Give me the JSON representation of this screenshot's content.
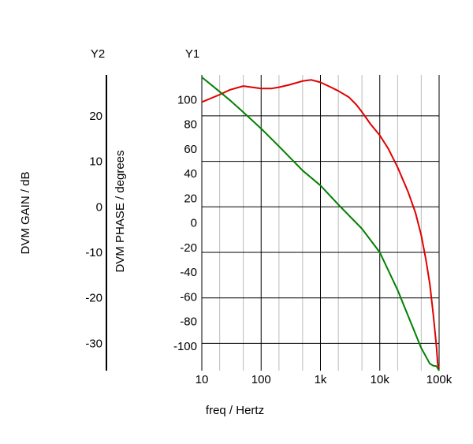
{
  "chart_data": {
    "type": "line",
    "x_scale": "log",
    "xlabel": "freq / Hertz",
    "x_ticks": [
      {
        "value": 10,
        "label": "10"
      },
      {
        "value": 100,
        "label": "100"
      },
      {
        "value": 1000,
        "label": "1k"
      },
      {
        "value": 10000,
        "label": "10k"
      },
      {
        "value": 100000,
        "label": "100k"
      }
    ],
    "xlim": [
      10,
      100000
    ],
    "grid": true,
    "axes": {
      "y1": {
        "name": "Y1",
        "ylabel": "DVM PHASE / degrees",
        "ylim": [
          -120,
          120
        ],
        "tick_values": [
          100,
          80,
          60,
          40,
          20,
          0,
          -20,
          -40,
          -60,
          -80,
          -100
        ],
        "tick_labels": [
          "100",
          "80",
          "60",
          "40",
          "20",
          "0",
          "-20",
          "-40",
          "-60",
          "-80",
          "-100"
        ]
      },
      "y2": {
        "name": "Y2",
        "ylabel": "DVM GAIN / dB",
        "ylim": [
          -36,
          29
        ],
        "tick_values": [
          20,
          10,
          0,
          -10,
          -20,
          -30
        ],
        "tick_labels": [
          "20",
          "10",
          "0",
          "-10",
          "-20",
          "-30"
        ]
      }
    },
    "series": [
      {
        "color": "#e00000",
        "axis": "y1",
        "points": [
          [
            10,
            98
          ],
          [
            20,
            104
          ],
          [
            30,
            108
          ],
          [
            50,
            111
          ],
          [
            70,
            110
          ],
          [
            100,
            109
          ],
          [
            150,
            109
          ],
          [
            200,
            110
          ],
          [
            300,
            112
          ],
          [
            500,
            115
          ],
          [
            700,
            116
          ],
          [
            1000,
            114
          ],
          [
            1500,
            110
          ],
          [
            2000,
            107
          ],
          [
            3000,
            102
          ],
          [
            4000,
            96
          ],
          [
            5000,
            90
          ],
          [
            7000,
            80
          ],
          [
            10000,
            71
          ],
          [
            14000,
            60
          ],
          [
            20000,
            45
          ],
          [
            30000,
            25
          ],
          [
            40000,
            8
          ],
          [
            50000,
            -10
          ],
          [
            60000,
            -30
          ],
          [
            70000,
            -50
          ],
          [
            80000,
            -75
          ],
          [
            90000,
            -100
          ],
          [
            95000,
            -115
          ],
          [
            100000,
            -118
          ]
        ]
      },
      {
        "color": "#008000",
        "axis": "y2",
        "points": [
          [
            10,
            28.5
          ],
          [
            20,
            25.3
          ],
          [
            30,
            23.4
          ],
          [
            50,
            20.8
          ],
          [
            100,
            17.2
          ],
          [
            200,
            13.3
          ],
          [
            500,
            8.0
          ],
          [
            1000,
            4.7
          ],
          [
            2000,
            0.5
          ],
          [
            5000,
            -4.8
          ],
          [
            10000,
            -10.0
          ],
          [
            20000,
            -18.3
          ],
          [
            50000,
            -31.0
          ],
          [
            70000,
            -34.5
          ],
          [
            80000,
            -34.9
          ],
          [
            90000,
            -35.0
          ],
          [
            95000,
            -35.5
          ],
          [
            100000,
            -36.0
          ]
        ]
      }
    ]
  }
}
